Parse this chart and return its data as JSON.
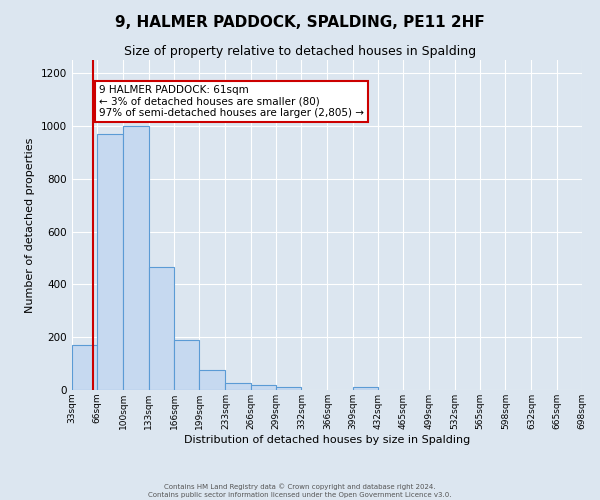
{
  "title": "9, HALMER PADDOCK, SPALDING, PE11 2HF",
  "subtitle": "Size of property relative to detached houses in Spalding",
  "xlabel": "Distribution of detached houses by size in Spalding",
  "ylabel": "Number of detached properties",
  "bin_edges": [
    33,
    66,
    100,
    133,
    166,
    199,
    233,
    266,
    299,
    332,
    366,
    399,
    432,
    465,
    499,
    532,
    565,
    598,
    632,
    665,
    698
  ],
  "bar_heights": [
    170,
    970,
    1000,
    465,
    190,
    75,
    25,
    20,
    10,
    0,
    0,
    10,
    0,
    0,
    0,
    0,
    0,
    0,
    0,
    0
  ],
  "bar_color": "#c6d9f0",
  "bar_edgecolor": "#5b9bd5",
  "property_size": 61,
  "property_line_color": "#cc0000",
  "annotation_text": "9 HALMER PADDOCK: 61sqm\n← 3% of detached houses are smaller (80)\n97% of semi-detached houses are larger (2,805) →",
  "annotation_box_edgecolor": "#cc0000",
  "annotation_box_facecolor": "#ffffff",
  "ylim": [
    0,
    1250
  ],
  "xlim": [
    33,
    698
  ],
  "yticks": [
    0,
    200,
    400,
    600,
    800,
    1000,
    1200
  ],
  "footer_line1": "Contains HM Land Registry data © Crown copyright and database right 2024.",
  "footer_line2": "Contains public sector information licensed under the Open Government Licence v3.0.",
  "background_color": "#dce6f0",
  "grid_color": "#ffffff",
  "title_fontsize": 11,
  "subtitle_fontsize": 9,
  "xlabel_fontsize": 8,
  "ylabel_fontsize": 8,
  "annotation_fontsize": 7.5,
  "tick_fontsize": 6.5,
  "ytick_fontsize": 7.5,
  "footer_fontsize": 5
}
